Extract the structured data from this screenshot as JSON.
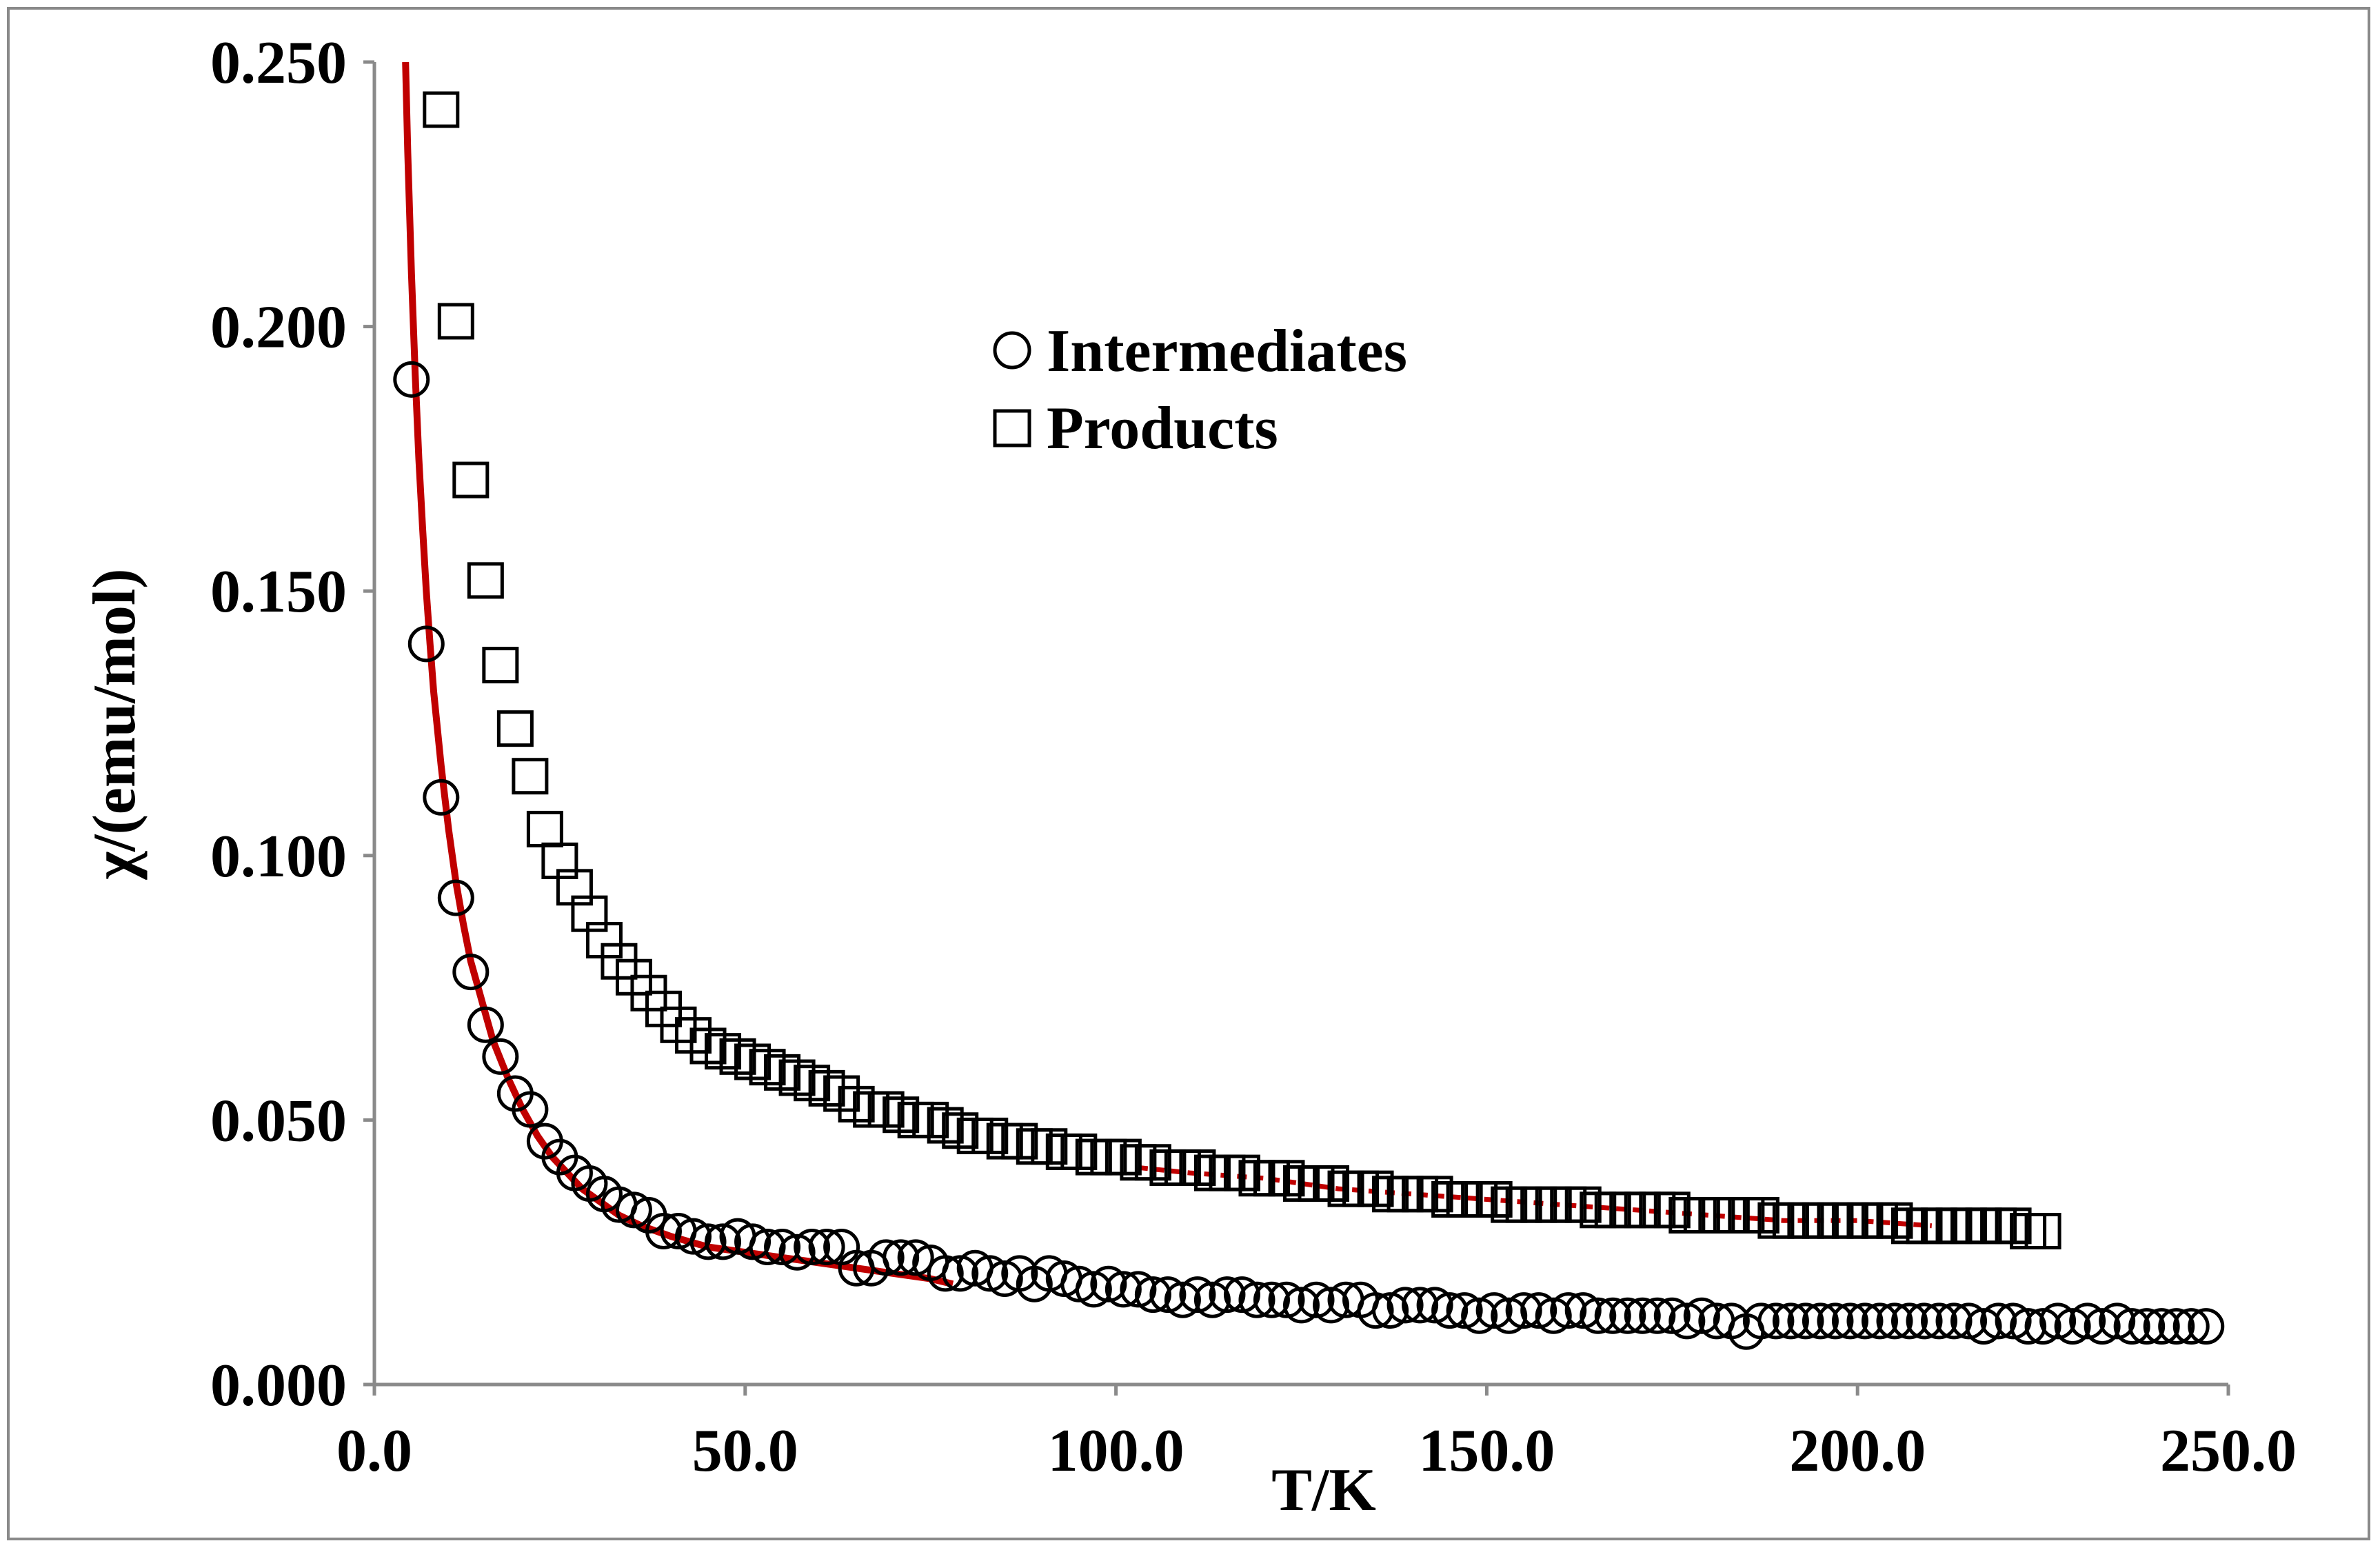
{
  "chart_data": {
    "type": "scatter",
    "title": "",
    "xlabel": "T/K",
    "ylabel": "χ/(emu/mol)",
    "xlim": [
      0,
      250
    ],
    "ylim": [
      0,
      0.25
    ],
    "x_ticks": [
      "0.0",
      "50.0",
      "100.0",
      "150.0",
      "200.0",
      "250.0"
    ],
    "y_ticks": [
      "0.000",
      "0.050",
      "0.100",
      "0.150",
      "0.200",
      "0.250"
    ],
    "grid": false,
    "legend": "upper-center",
    "series": [
      {
        "name": "Intermediates",
        "marker": "circle",
        "color": "#000000",
        "x": [
          5,
          7,
          9,
          11,
          13,
          15,
          17,
          19,
          21,
          23,
          25,
          27,
          29,
          31,
          33,
          35,
          37,
          39,
          41,
          43,
          45,
          47,
          49,
          51,
          53,
          55,
          57,
          59,
          61,
          63,
          65,
          67,
          69,
          71,
          73,
          75,
          77,
          79,
          81,
          83,
          85,
          87,
          89,
          91,
          93,
          95,
          97,
          99,
          101,
          103,
          105,
          107,
          109,
          111,
          113,
          115,
          117,
          119,
          121,
          123,
          125,
          127,
          129,
          131,
          133,
          135,
          137,
          139,
          141,
          143,
          145,
          147,
          149,
          151,
          153,
          155,
          157,
          159,
          161,
          163,
          165,
          167,
          169,
          171,
          173,
          175,
          177,
          179,
          181,
          183,
          185,
          187,
          189,
          191,
          193,
          195,
          197,
          199,
          201,
          203,
          205,
          207,
          209,
          211,
          213,
          215,
          217,
          219,
          221,
          223,
          225,
          227,
          229,
          231,
          233,
          235,
          237,
          239,
          241,
          243,
          245,
          247
        ],
        "y": [
          0.19,
          0.14,
          0.111,
          0.092,
          0.078,
          0.068,
          0.062,
          0.055,
          0.052,
          0.046,
          0.043,
          0.04,
          0.038,
          0.036,
          0.034,
          0.033,
          0.032,
          0.029,
          0.029,
          0.028,
          0.027,
          0.027,
          0.028,
          0.027,
          0.026,
          0.026,
          0.025,
          0.026,
          0.026,
          0.026,
          0.022,
          0.022,
          0.024,
          0.024,
          0.024,
          0.023,
          0.021,
          0.021,
          0.022,
          0.021,
          0.02,
          0.021,
          0.019,
          0.021,
          0.02,
          0.019,
          0.018,
          0.019,
          0.018,
          0.018,
          0.017,
          0.017,
          0.016,
          0.017,
          0.016,
          0.017,
          0.017,
          0.016,
          0.016,
          0.016,
          0.015,
          0.016,
          0.015,
          0.016,
          0.016,
          0.014,
          0.014,
          0.015,
          0.015,
          0.015,
          0.014,
          0.014,
          0.013,
          0.014,
          0.013,
          0.014,
          0.014,
          0.013,
          0.014,
          0.014,
          0.013,
          0.013,
          0.013,
          0.013,
          0.013,
          0.013,
          0.012,
          0.013,
          0.012,
          0.012,
          0.01,
          0.012,
          0.012,
          0.012,
          0.012,
          0.012,
          0.012,
          0.012,
          0.012,
          0.012,
          0.012,
          0.012,
          0.012,
          0.012,
          0.012,
          0.012,
          0.011,
          0.012,
          0.012,
          0.011,
          0.011,
          0.012,
          0.011,
          0.012,
          0.011,
          0.012,
          0.011,
          0.011,
          0.011,
          0.011,
          0.011,
          0.011
        ]
      },
      {
        "name": "Products",
        "marker": "square",
        "color": "#000000",
        "x": [
          9,
          11,
          13,
          15,
          17,
          19,
          21,
          23,
          25,
          27,
          29,
          31,
          33,
          35,
          37,
          39,
          41,
          43,
          45,
          47,
          49,
          51,
          53,
          55,
          57,
          59,
          61,
          63,
          65,
          67,
          69,
          71,
          73,
          75,
          77,
          79,
          81,
          83,
          85,
          87,
          89,
          91,
          93,
          95,
          97,
          99,
          101,
          103,
          105,
          107,
          109,
          111,
          113,
          115,
          117,
          119,
          121,
          123,
          125,
          127,
          129,
          131,
          133,
          135,
          137,
          139,
          141,
          143,
          145,
          147,
          149,
          151,
          153,
          155,
          157,
          159,
          161,
          163,
          165,
          167,
          169,
          171,
          173,
          175,
          177,
          179,
          181,
          183,
          185,
          187,
          189,
          191,
          193,
          195,
          197,
          199,
          201,
          203,
          205,
          207,
          209,
          211,
          213,
          215,
          217,
          219,
          221,
          223,
          225
        ],
        "y": [
          0.241,
          0.201,
          0.171,
          0.152,
          0.136,
          0.124,
          0.115,
          0.105,
          0.099,
          0.094,
          0.089,
          0.084,
          0.08,
          0.077,
          0.074,
          0.071,
          0.068,
          0.066,
          0.064,
          0.063,
          0.062,
          0.061,
          0.06,
          0.059,
          0.058,
          0.057,
          0.056,
          0.055,
          0.053,
          0.052,
          0.052,
          0.051,
          0.05,
          0.05,
          0.049,
          0.048,
          0.047,
          0.047,
          0.046,
          0.046,
          0.045,
          0.045,
          0.044,
          0.044,
          0.043,
          0.043,
          0.043,
          0.042,
          0.042,
          0.041,
          0.041,
          0.041,
          0.04,
          0.04,
          0.04,
          0.039,
          0.039,
          0.039,
          0.038,
          0.038,
          0.038,
          0.037,
          0.037,
          0.037,
          0.036,
          0.036,
          0.036,
          0.036,
          0.035,
          0.035,
          0.035,
          0.035,
          0.034,
          0.034,
          0.034,
          0.034,
          0.034,
          0.034,
          0.033,
          0.033,
          0.033,
          0.033,
          0.033,
          0.033,
          0.032,
          0.032,
          0.032,
          0.032,
          0.032,
          0.032,
          0.031,
          0.031,
          0.031,
          0.031,
          0.031,
          0.031,
          0.031,
          0.031,
          0.031,
          0.03,
          0.03,
          0.03,
          0.03,
          0.03,
          0.03,
          0.03,
          0.03,
          0.029,
          0.029
        ]
      }
    ],
    "fits": [
      {
        "name": "Intermediates fit",
        "color": "#c00000",
        "style": "solid",
        "x": [
          4.2,
          4.5,
          5,
          5.5,
          6,
          6.5,
          7,
          7.5,
          8,
          9,
          10,
          11,
          12,
          13,
          14,
          15,
          16,
          18,
          20,
          22,
          24,
          26,
          28,
          30,
          33,
          36,
          40,
          45,
          50,
          55,
          60,
          65,
          70,
          75,
          78
        ],
        "y": [
          0.25,
          0.233,
          0.21,
          0.191,
          0.175,
          0.162,
          0.15,
          0.14,
          0.131,
          0.117,
          0.105,
          0.095,
          0.087,
          0.08,
          0.075,
          0.07,
          0.065,
          0.058,
          0.052,
          0.047,
          0.043,
          0.04,
          0.037,
          0.035,
          0.032,
          0.03,
          0.028,
          0.026,
          0.025,
          0.024,
          0.023,
          0.022,
          0.021,
          0.02,
          0.019
        ]
      },
      {
        "name": "Products fit",
        "color": "#c00000",
        "style": "dashed",
        "x": [
          103,
          110,
          120,
          130,
          140,
          150,
          160,
          170,
          180,
          190,
          200,
          210
        ],
        "y": [
          0.041,
          0.04,
          0.039,
          0.037,
          0.036,
          0.035,
          0.034,
          0.033,
          0.032,
          0.031,
          0.031,
          0.03
        ]
      }
    ]
  }
}
